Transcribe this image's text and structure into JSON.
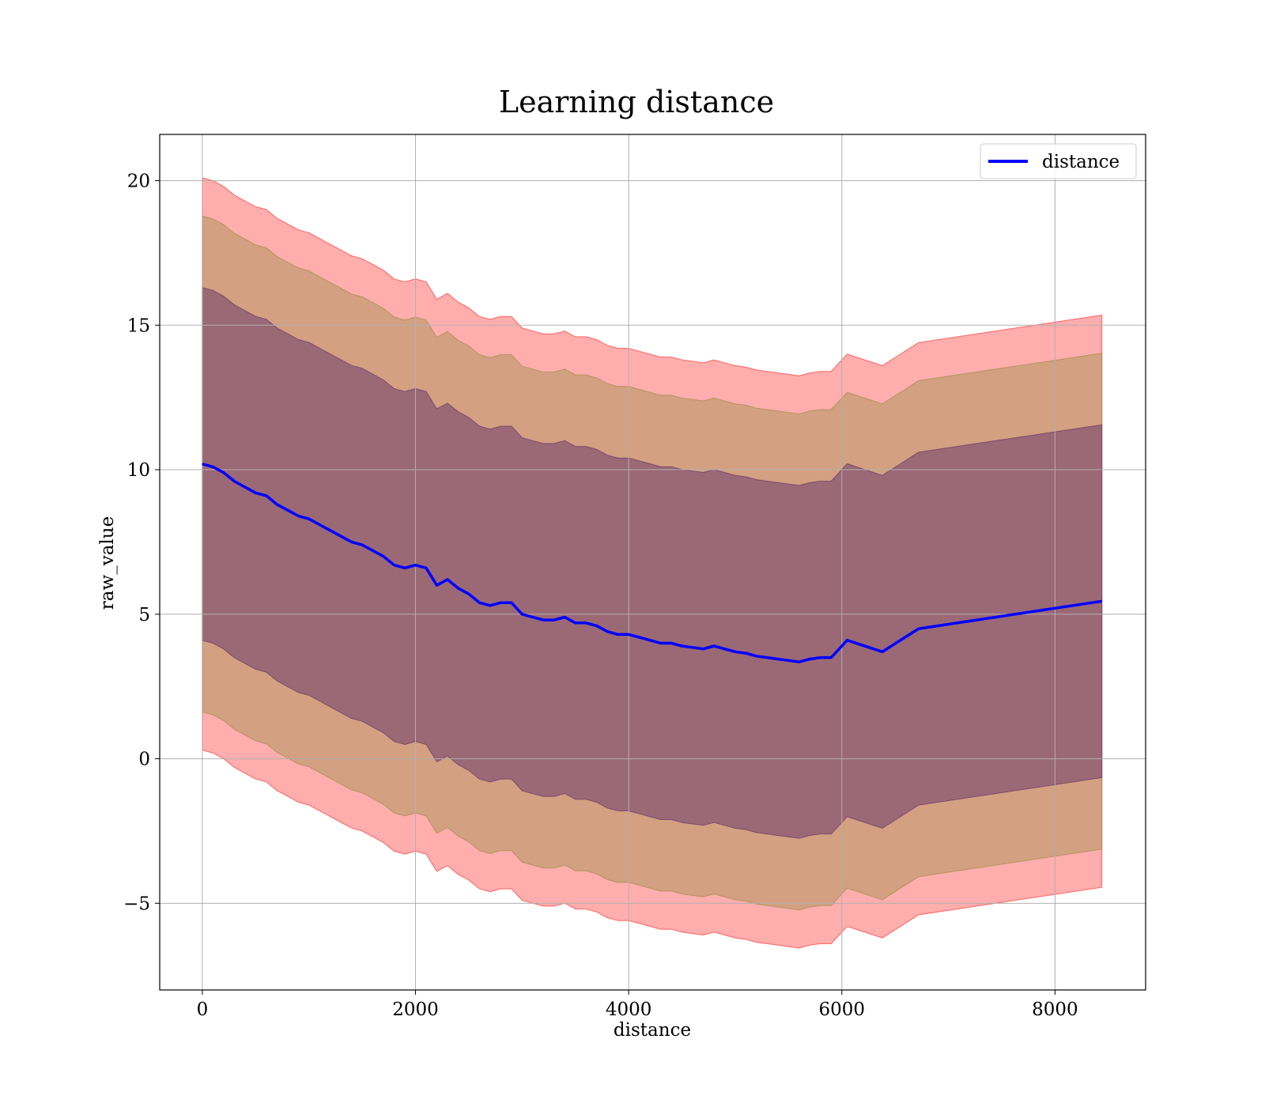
{
  "chart_data": {
    "type": "line",
    "title": "Learning distance",
    "xlabel": "distance",
    "ylabel": "raw_value",
    "xlim": [
      -400,
      8850
    ],
    "ylim": [
      -8,
      21.6
    ],
    "grid": true,
    "legend_position": "upper right",
    "x_ticks": [
      0,
      2000,
      4000,
      6000,
      8000
    ],
    "x_tick_labels": [
      "0",
      "2000",
      "4000",
      "6000",
      "8000"
    ],
    "y_ticks": [
      -5,
      0,
      5,
      10,
      15,
      20
    ],
    "y_tick_labels": [
      "−5",
      "0",
      "5",
      "10",
      "15",
      "20"
    ],
    "series": [
      {
        "name": "distance",
        "color": "#0000ff",
        "x": [
          0,
          100,
          200,
          300,
          400,
          500,
          600,
          700,
          800,
          900,
          1000,
          1100,
          1200,
          1300,
          1400,
          1500,
          1600,
          1700,
          1800,
          1900,
          2000,
          2100,
          2200,
          2300,
          2400,
          2500,
          2600,
          2700,
          2800,
          2900,
          3000,
          3100,
          3200,
          3300,
          3400,
          3500,
          3600,
          3700,
          3800,
          3900,
          4000,
          4100,
          4200,
          4300,
          4400,
          4500,
          4600,
          4700,
          4800,
          4900,
          5000,
          5100,
          5200,
          5300,
          5400,
          5500,
          5600,
          5700,
          5800,
          5900,
          6050,
          6380,
          6720,
          8440
        ],
        "y": [
          10.2,
          10.1,
          9.9,
          9.6,
          9.4,
          9.2,
          9.1,
          8.8,
          8.6,
          8.4,
          8.3,
          8.1,
          7.9,
          7.7,
          7.5,
          7.4,
          7.2,
          7.0,
          6.7,
          6.6,
          6.7,
          6.6,
          6.0,
          6.2,
          5.9,
          5.7,
          5.4,
          5.3,
          5.4,
          5.4,
          5.0,
          4.9,
          4.8,
          4.8,
          4.9,
          4.7,
          4.7,
          4.6,
          4.4,
          4.3,
          4.3,
          4.2,
          4.1,
          4.0,
          4.0,
          3.9,
          3.85,
          3.8,
          3.9,
          3.8,
          3.7,
          3.65,
          3.55,
          3.5,
          3.45,
          3.4,
          3.35,
          3.45,
          3.5,
          3.5,
          4.1,
          3.7,
          4.5,
          5.45
        ]
      }
    ],
    "bands": [
      {
        "sigma": 3,
        "color": "#ff0000",
        "opacity": 0.32
      },
      {
        "sigma": 2.6,
        "color": "#8b8b3a",
        "opacity": 0.38
      },
      {
        "sigma": 1.85,
        "color": "#6e3b6e",
        "opacity": 0.55
      }
    ],
    "band_half_width_per_sigma": 3.3
  }
}
